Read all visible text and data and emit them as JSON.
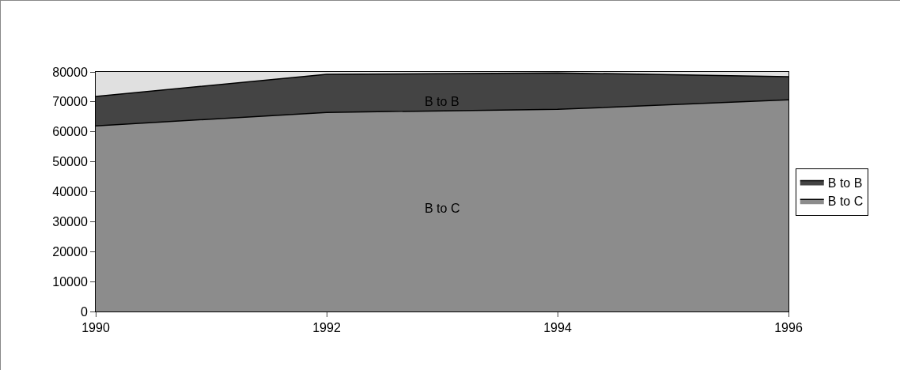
{
  "chart_data": {
    "type": "area",
    "stacked": true,
    "x": [
      1990,
      1992,
      1994,
      1996
    ],
    "series": [
      {
        "name": "B to C",
        "color": "#8c8c8c",
        "values": [
          62000,
          66500,
          67500,
          70700
        ]
      },
      {
        "name": "B to B",
        "color": "#444444",
        "values": [
          9800,
          12700,
          12200,
          7700
        ]
      }
    ],
    "xlim": [
      1990,
      1996
    ],
    "xticks": [
      1990,
      1992,
      1994,
      1996
    ],
    "ylim": [
      0,
      80000
    ],
    "yticks": [
      0,
      10000,
      20000,
      30000,
      40000,
      50000,
      60000,
      70000,
      80000
    ],
    "annotations": [
      "B to B",
      "B to C"
    ],
    "grid": false,
    "legend": "right"
  }
}
